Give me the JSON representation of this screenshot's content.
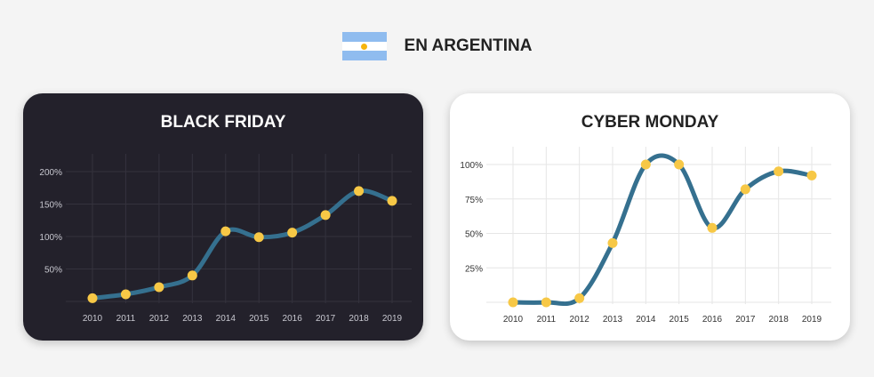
{
  "header": {
    "title": "EN ARGENTINA",
    "flag_icon": "argentina-flag",
    "flag_colors": [
      "#74acdf",
      "#ffffff",
      "#74acdf"
    ],
    "sun_color": "#f6b40e"
  },
  "colors": {
    "line": "#35708f",
    "marker": "#f7c846"
  },
  "chart_data": [
    {
      "type": "line",
      "title": "BLACK FRIDAY",
      "categories": [
        "2010",
        "2011",
        "2012",
        "2013",
        "2014",
        "2015",
        "2016",
        "2017",
        "2018",
        "2019"
      ],
      "values": [
        5,
        11,
        22,
        40,
        108,
        99,
        106,
        133,
        170,
        155
      ],
      "ylim": [
        0,
        200
      ],
      "yticks": [
        50,
        100,
        150,
        200
      ],
      "ytick_labels": [
        "50%",
        "100%",
        "150%",
        "200%"
      ],
      "grid": true,
      "background": "#23212b"
    },
    {
      "type": "line",
      "title": "CYBER MONDAY",
      "categories": [
        "2010",
        "2011",
        "2012",
        "2013",
        "2014",
        "2015",
        "2016",
        "2017",
        "2018",
        "2019"
      ],
      "values": [
        0,
        0,
        3,
        43,
        100,
        100,
        54,
        82,
        95,
        92
      ],
      "ylim": [
        0,
        100
      ],
      "yticks": [
        25,
        50,
        75,
        100
      ],
      "ytick_labels": [
        "25%",
        "50%",
        "75%",
        "100%"
      ],
      "grid": true,
      "background": "#ffffff"
    }
  ]
}
